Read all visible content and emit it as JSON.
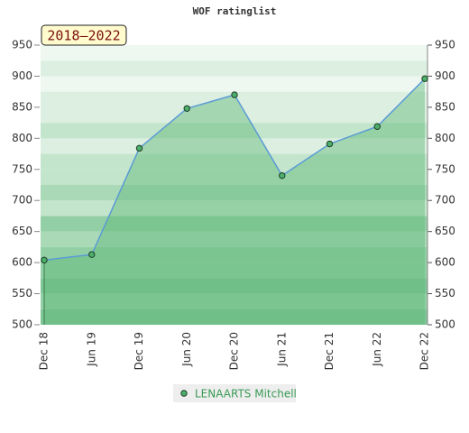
{
  "chart_data": {
    "type": "area",
    "title": "WOF ratinglist",
    "annotation": "2018–2022",
    "categories": [
      "Dec 18",
      "Jun 19",
      "Dec 19",
      "Jun 20",
      "Dec 20",
      "Jun 21",
      "Dec 21",
      "Jun 22",
      "Dec 22"
    ],
    "series": [
      {
        "name": "LENAARTS Mitchell",
        "color": "#5b9bd5",
        "values": [
          604,
          613,
          784,
          848,
          870,
          740,
          791,
          819,
          896
        ]
      }
    ],
    "ylim": [
      500,
      950
    ],
    "yticks": [
      500,
      550,
      600,
      650,
      700,
      750,
      800,
      850,
      900,
      950
    ],
    "y2lim": [
      500,
      950
    ],
    "y2ticks": [
      500,
      550,
      600,
      650,
      700,
      750,
      800,
      850,
      900,
      950
    ],
    "legend": "bottom"
  }
}
